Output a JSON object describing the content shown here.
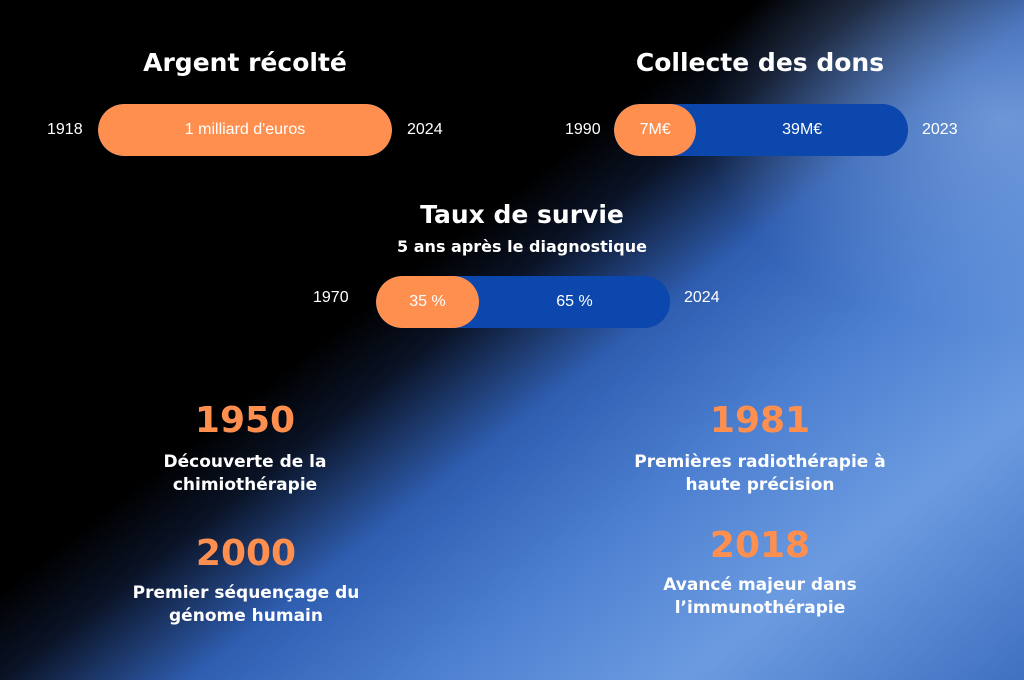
{
  "colors": {
    "orange": "#ff8f4f",
    "blue": "#0b47ad",
    "text": "#ffffff"
  },
  "money": {
    "title": "Argent récolté",
    "start_year": "1918",
    "end_year": "2024",
    "value_label": "1 milliard d'euros",
    "orange_fraction": 1.0
  },
  "donations": {
    "title": "Collecte des dons",
    "start_year": "1990",
    "end_year": "2023",
    "start_value": "7M€",
    "end_value": "39M€",
    "orange_fraction": 0.28
  },
  "survival": {
    "title": "Taux de survie",
    "subtitle": "5 ans après le diagnostique",
    "start_year": "1970",
    "end_year": "2024",
    "start_value": "35 %",
    "end_value": "65 %",
    "orange_fraction": 0.35
  },
  "milestones": [
    {
      "year": "1950",
      "line1": "Découverte de la",
      "line2": "chimiothérapie"
    },
    {
      "year": "1981",
      "line1": "Premières radiothérapie à",
      "line2": "haute précision"
    },
    {
      "year": "2000",
      "line1": "Premier séquençage du",
      "line2": "génome humain"
    },
    {
      "year": "2018",
      "line1": "Avancé majeur dans",
      "line2": "l’immunothérapie"
    }
  ]
}
